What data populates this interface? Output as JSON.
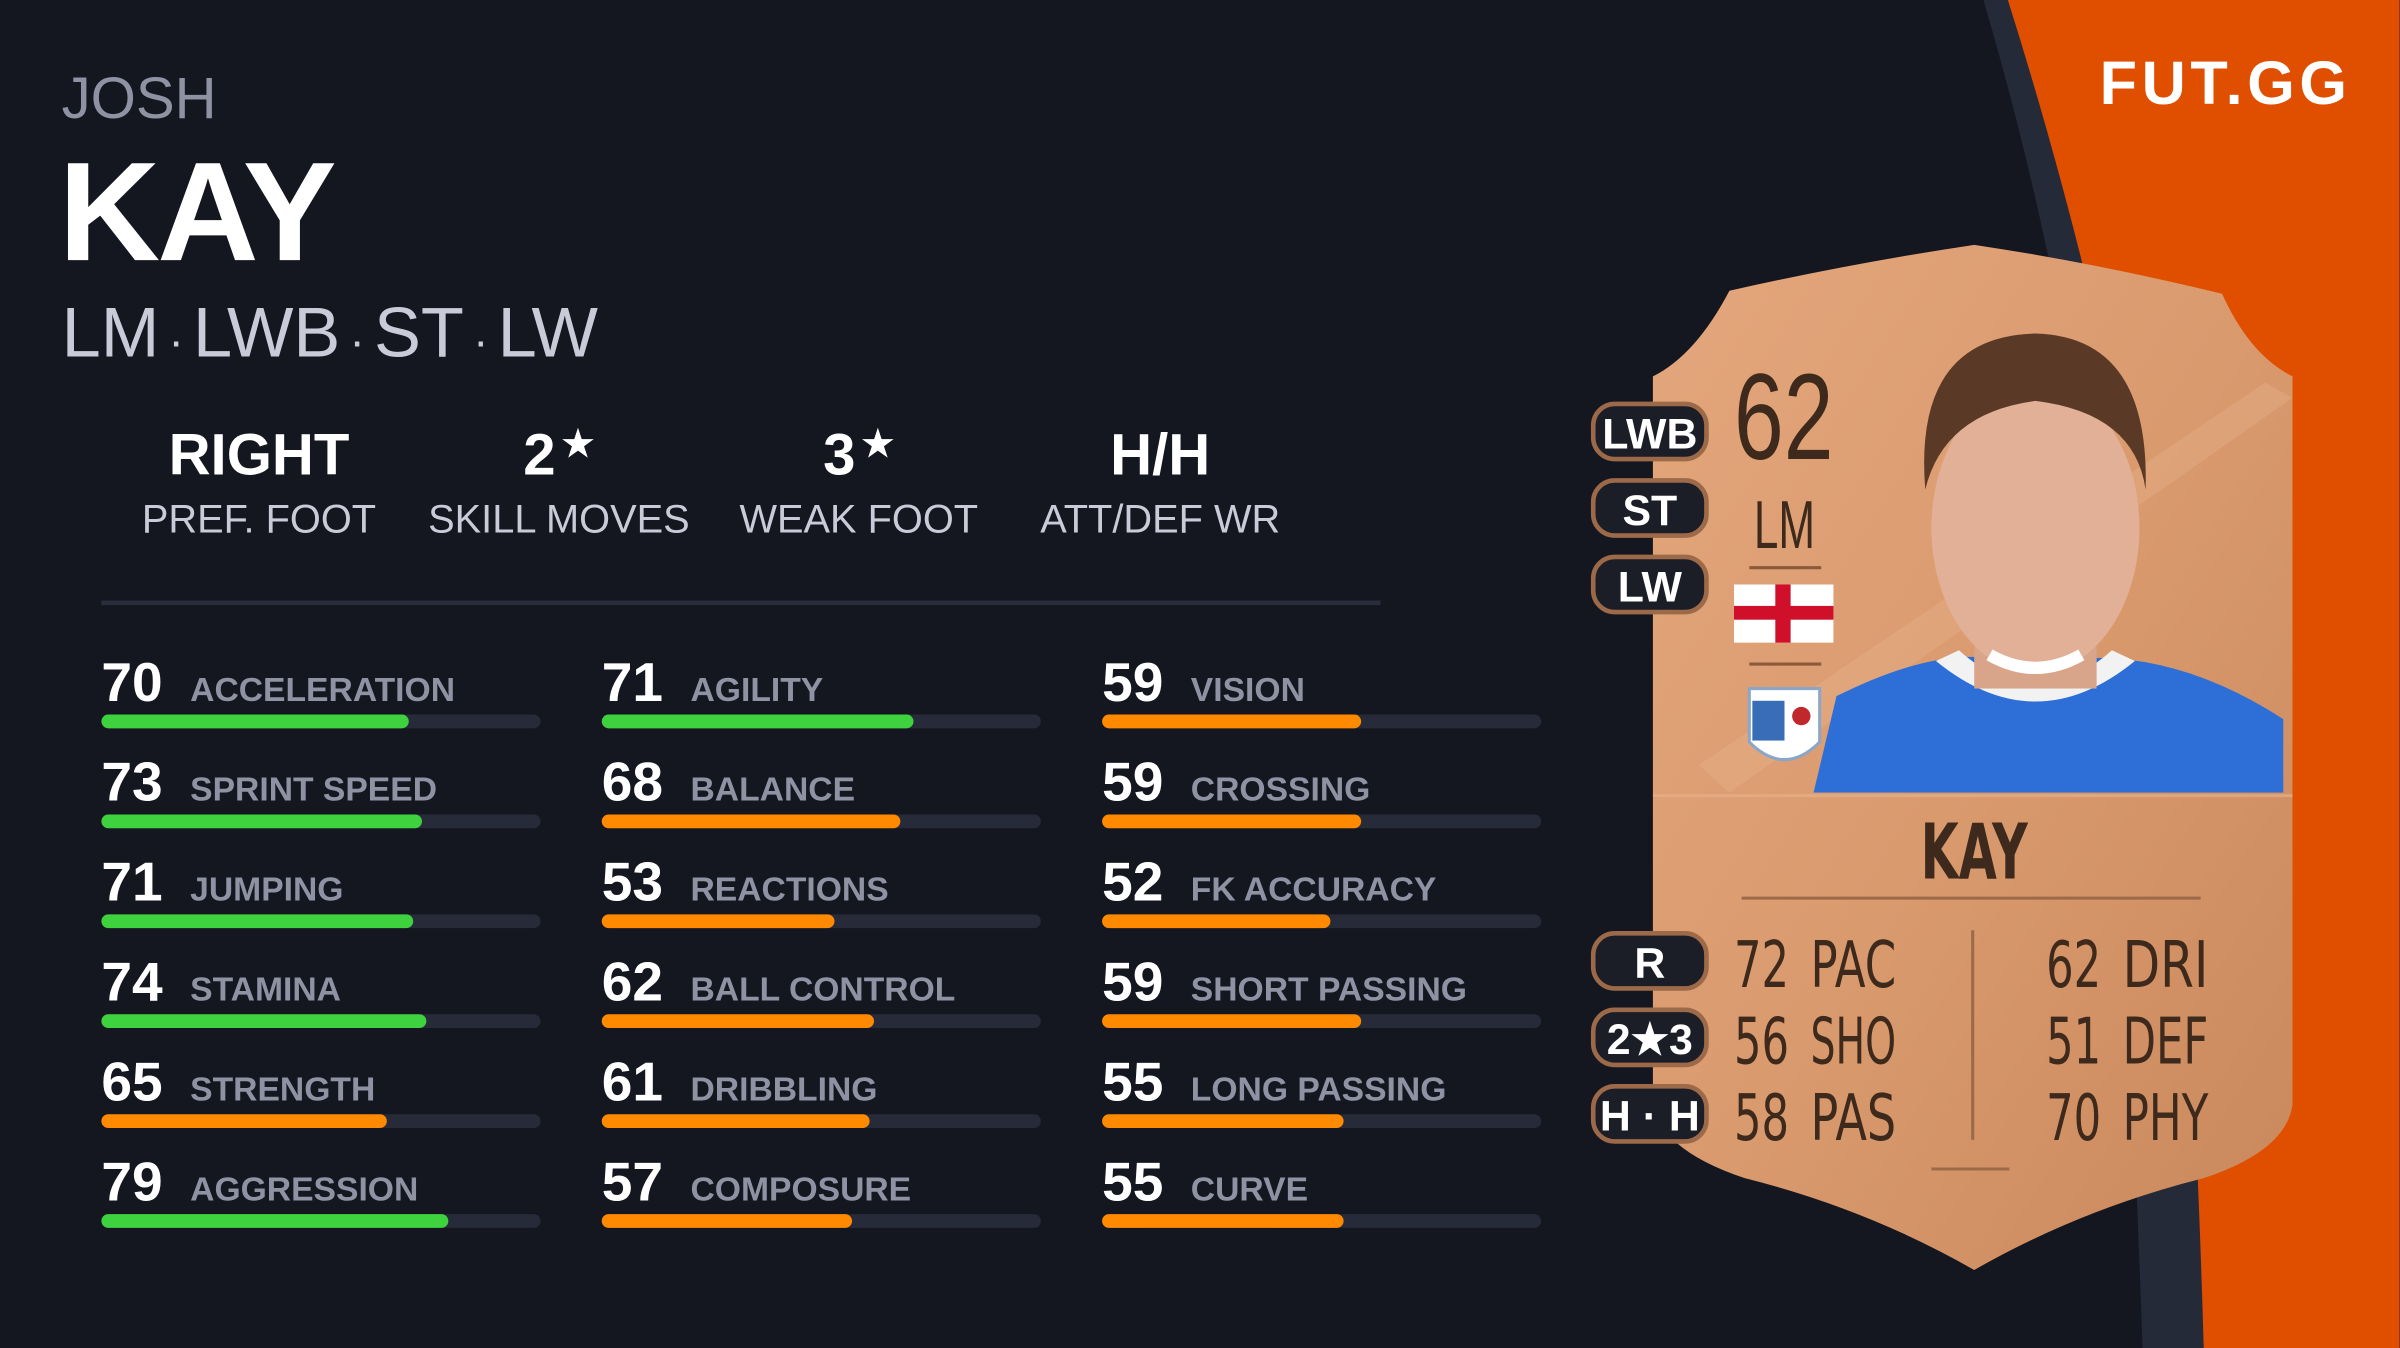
{
  "brand": {
    "logo": "FUT.GG",
    "accent": "#e04f00",
    "background": "#141620"
  },
  "player": {
    "first_name": "JOSH",
    "last_name": "KAY",
    "positions": [
      "LM",
      "LWB",
      "ST",
      "LW"
    ],
    "separator": "·"
  },
  "info": [
    {
      "value": "RIGHT",
      "star": "",
      "label": "PREF. FOOT"
    },
    {
      "value": "2",
      "star": "★",
      "label": "SKILL MOVES"
    },
    {
      "value": "3",
      "star": "★",
      "label": "WEAK FOOT"
    },
    {
      "value": "H/H",
      "star": "",
      "label": "ATT/DEF WR"
    }
  ],
  "stat_colors": {
    "high": "#3fd23f",
    "mid": "#ff8a00",
    "track": "#272a38"
  },
  "stats": [
    [
      {
        "value": 70,
        "label": "ACCELERATION"
      },
      {
        "value": 73,
        "label": "SPRINT SPEED"
      },
      {
        "value": 71,
        "label": "JUMPING"
      },
      {
        "value": 74,
        "label": "STAMINA"
      },
      {
        "value": 65,
        "label": "STRENGTH"
      },
      {
        "value": 79,
        "label": "AGGRESSION"
      }
    ],
    [
      {
        "value": 71,
        "label": "AGILITY"
      },
      {
        "value": 68,
        "label": "BALANCE"
      },
      {
        "value": 53,
        "label": "REACTIONS"
      },
      {
        "value": 62,
        "label": "BALL CONTROL"
      },
      {
        "value": 61,
        "label": "DRIBBLING"
      },
      {
        "value": 57,
        "label": "COMPOSURE"
      }
    ],
    [
      {
        "value": 59,
        "label": "VISION"
      },
      {
        "value": 59,
        "label": "CROSSING"
      },
      {
        "value": 52,
        "label": "FK ACCURACY"
      },
      {
        "value": 59,
        "label": "SHORT PASSING"
      },
      {
        "value": 55,
        "label": "LONG PASSING"
      },
      {
        "value": 55,
        "label": "CURVE"
      }
    ]
  ],
  "card": {
    "rating": "62",
    "position": "LM",
    "name": "KAY",
    "nation_flag": "england-flag",
    "club_badge": "barrow-afc-badge",
    "alt_positions": [
      "LWB",
      "ST",
      "LW"
    ],
    "side_pills": {
      "foot": "R",
      "skill": "2",
      "star": "★",
      "weak": "3",
      "work_rate": "H · H"
    },
    "face_stats_left": [
      {
        "value": "72",
        "label": "PAC"
      },
      {
        "value": "56",
        "label": "SHO"
      },
      {
        "value": "58",
        "label": "PAS"
      }
    ],
    "face_stats_right": [
      {
        "value": "62",
        "label": "DRI"
      },
      {
        "value": "51",
        "label": "DEF"
      },
      {
        "value": "70",
        "label": "PHY"
      }
    ]
  }
}
